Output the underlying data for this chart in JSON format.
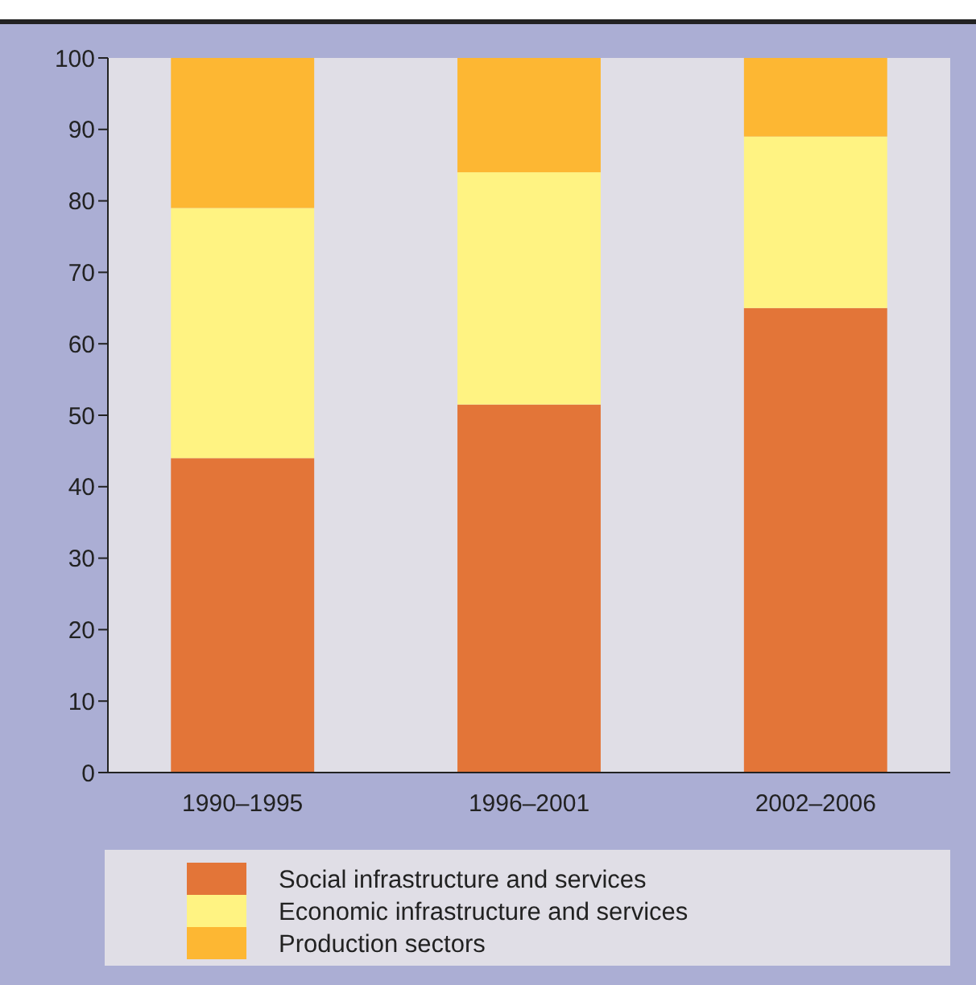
{
  "chart_data": {
    "type": "bar",
    "stacked": true,
    "categories": [
      "1990–1995",
      "1996–2001",
      "2002–2006"
    ],
    "series": [
      {
        "name": "Social infrastructure and services",
        "color": "#e37538",
        "values": [
          44,
          51.5,
          65
        ]
      },
      {
        "name": "Economic infrastructure and services",
        "color": "#fff382",
        "values": [
          35,
          32.5,
          24
        ]
      },
      {
        "name": "Production sectors",
        "color": "#fdb733",
        "values": [
          21,
          16,
          11
        ]
      }
    ],
    "ylim": [
      0,
      100
    ],
    "yticks": [
      0,
      10,
      20,
      30,
      40,
      50,
      60,
      70,
      80,
      90,
      100
    ],
    "legend": "bottom"
  }
}
